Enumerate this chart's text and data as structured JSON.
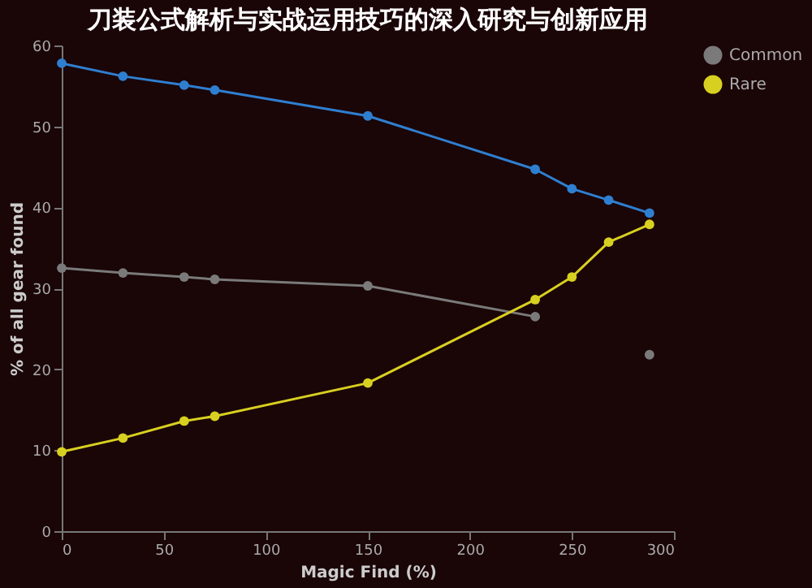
{
  "chart_data": {
    "type": "line",
    "title": "刀装公式解析与实战运用技巧的深入研究与创新应用",
    "xlabel": "Magic Find (%)",
    "ylabel": "% of all gear found",
    "x": [
      0,
      30,
      60,
      75,
      150,
      232,
      250,
      268,
      288
    ],
    "series": [
      {
        "color": "#2f7fd0",
        "values": [
          57.8,
          56.2,
          55.1,
          54.5,
          51.3,
          44.7,
          42.3,
          40.9,
          39.3
        ]
      },
      {
        "name": "Common",
        "color": "#7a7a7a",
        "values": [
          32.5,
          31.9,
          31.4,
          31.1,
          30.3,
          26.5,
          null,
          null,
          21.8
        ]
      },
      {
        "name": "Rare",
        "color": "#d8d020",
        "values": [
          9.8,
          11.5,
          13.6,
          14.2,
          18.3,
          28.6,
          31.4,
          35.7,
          37.9
        ]
      }
    ],
    "xlim": [
      0,
      300
    ],
    "xticks": [
      0,
      50,
      100,
      150,
      200,
      250,
      300
    ],
    "ylim": [
      0,
      60
    ],
    "yticks": [
      0,
      10,
      20,
      30,
      40,
      50,
      60
    ],
    "grid": false,
    "legend": "right",
    "marker": "circle",
    "line_style": "solid"
  }
}
